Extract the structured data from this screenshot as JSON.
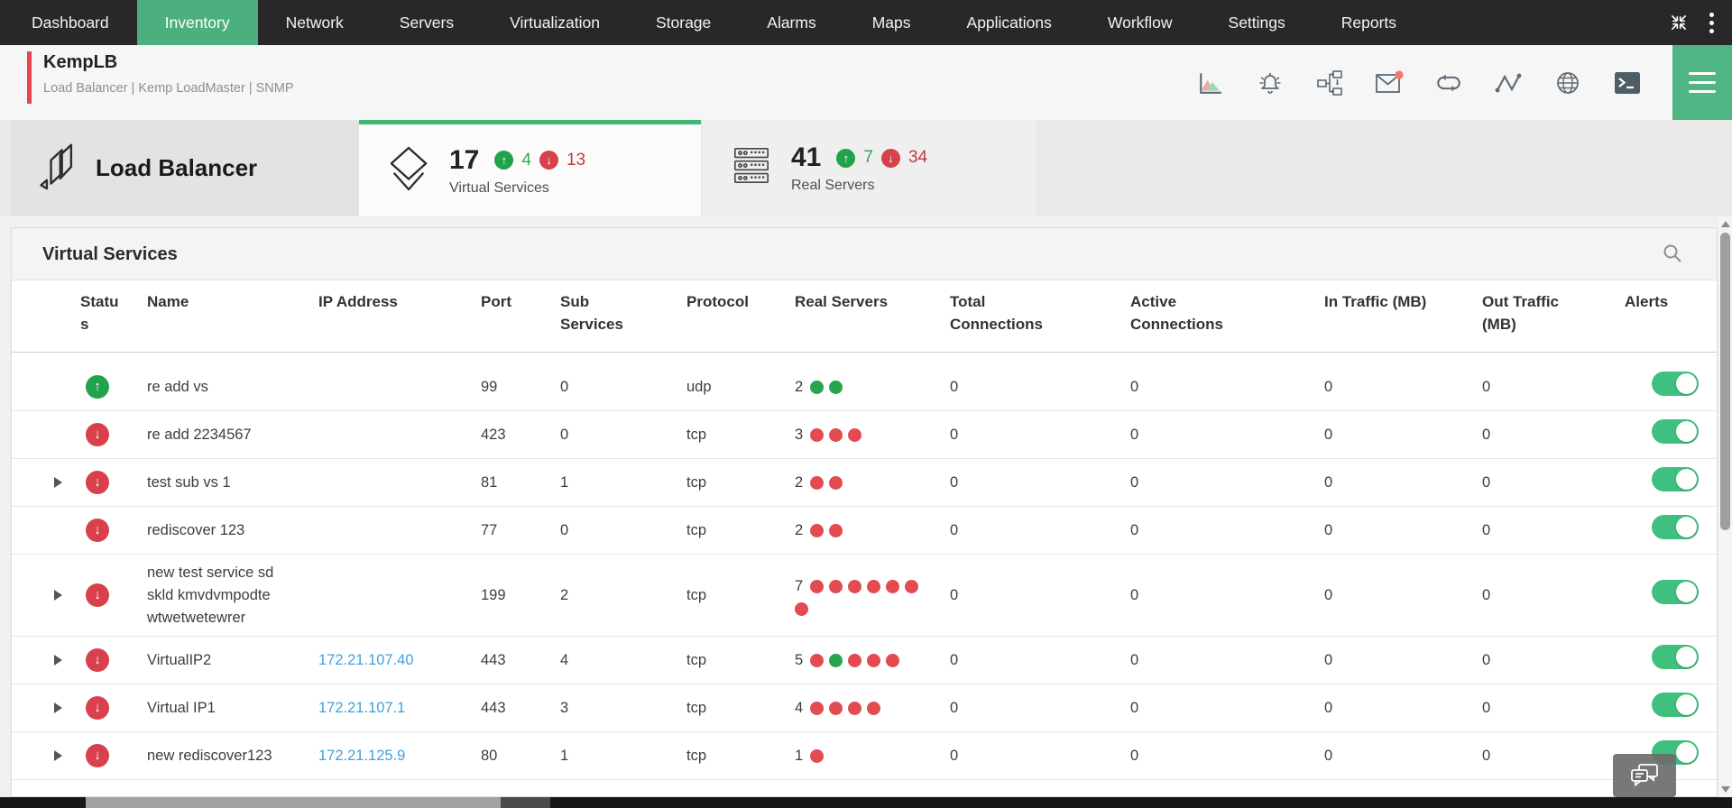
{
  "colors": {
    "nav_bg": "#282828",
    "nav_active_green": "#4caf7e",
    "accent_red": "#e84550",
    "tab_active_border": "#3db976",
    "status_up_green": "#23a24c",
    "status_down_red": "#d8414c",
    "dot_up_green": "#27a54e",
    "dot_down_red": "#e24b50",
    "toggle_on_green": "#3fc07c",
    "ip_link_blue": "#3ea1dd"
  },
  "nav": {
    "items": [
      {
        "label": "Dashboard",
        "active": false
      },
      {
        "label": "Inventory",
        "active": true
      },
      {
        "label": "Network",
        "active": false
      },
      {
        "label": "Servers",
        "active": false
      },
      {
        "label": "Virtualization",
        "active": false
      },
      {
        "label": "Storage",
        "active": false
      },
      {
        "label": "Alarms",
        "active": false
      },
      {
        "label": "Maps",
        "active": false
      },
      {
        "label": "Applications",
        "active": false
      },
      {
        "label": "Workflow",
        "active": false
      },
      {
        "label": "Settings",
        "active": false
      },
      {
        "label": "Reports",
        "active": false
      }
    ],
    "right_icons": [
      "collapse-icon",
      "kebab-menu-icon"
    ]
  },
  "device": {
    "name": "KempLB",
    "subtitle": "Load Balancer | Kemp LoadMaster  | SNMP",
    "toolbar_icons": [
      "performance-chart-icon",
      "alarm-bell-icon",
      "workflow-icon",
      "mail-icon",
      "sync-loop-icon",
      "sparkline-icon",
      "globe-icon",
      "terminal-icon"
    ],
    "mail_notification": true,
    "menu_icon": "hamburger-menu-icon"
  },
  "overview": {
    "device_type": "Load Balancer",
    "tabs": [
      {
        "label": "Virtual Services",
        "count": "17",
        "up_count": "4",
        "down_count": "13",
        "active": true,
        "icon": "layers-diamond-icon"
      },
      {
        "label": "Real Servers",
        "count": "41",
        "up_count": "7",
        "down_count": "34",
        "active": false,
        "icon": "server-rack-icon"
      }
    ]
  },
  "panel": {
    "title": "Virtual Services",
    "search_icon": "search-icon",
    "columns": [
      "Status",
      "Name",
      "IP Address",
      "Port",
      "Sub Services",
      "Protocol",
      "Real Servers",
      "Total Connections",
      "Active Connections",
      "In Traffic (MB)",
      "Out Traffic (MB)",
      "Alerts"
    ],
    "rows": [
      {
        "expandable": false,
        "status": "up",
        "name": "re add vs",
        "ip": "",
        "port": "99",
        "sub_services": "0",
        "protocol": "udp",
        "real_server_count": "2",
        "real_server_dots": [
          "up",
          "up"
        ],
        "total_connections": "0",
        "active_connections": "0",
        "in_traffic_mb": "0",
        "out_traffic_mb": "0",
        "alerts_on": true
      },
      {
        "expandable": false,
        "status": "down",
        "name": "re add 2234567",
        "ip": "",
        "port": "423",
        "sub_services": "0",
        "protocol": "tcp",
        "real_server_count": "3",
        "real_server_dots": [
          "down",
          "down",
          "down"
        ],
        "total_connections": "0",
        "active_connections": "0",
        "in_traffic_mb": "0",
        "out_traffic_mb": "0",
        "alerts_on": true
      },
      {
        "expandable": true,
        "status": "down",
        "name": "test sub vs 1",
        "ip": "",
        "port": "81",
        "sub_services": "1",
        "protocol": "tcp",
        "real_server_count": "2",
        "real_server_dots": [
          "down",
          "down"
        ],
        "total_connections": "0",
        "active_connections": "0",
        "in_traffic_mb": "0",
        "out_traffic_mb": "0",
        "alerts_on": true
      },
      {
        "expandable": false,
        "status": "down",
        "name": "rediscover 123",
        "ip": "",
        "port": "77",
        "sub_services": "0",
        "protocol": "tcp",
        "real_server_count": "2",
        "real_server_dots": [
          "down",
          "down"
        ],
        "total_connections": "0",
        "active_connections": "0",
        "in_traffic_mb": "0",
        "out_traffic_mb": "0",
        "alerts_on": true
      },
      {
        "expandable": true,
        "status": "down",
        "name": "new test service sd skld kmvdvmpodte wtwetwetewrer",
        "ip": "",
        "port": "199",
        "sub_services": "2",
        "protocol": "tcp",
        "real_server_count": "7",
        "real_server_dots": [
          "down",
          "down",
          "down",
          "down",
          "down",
          "down",
          "down"
        ],
        "total_connections": "0",
        "active_connections": "0",
        "in_traffic_mb": "0",
        "out_traffic_mb": "0",
        "alerts_on": true
      },
      {
        "expandable": true,
        "status": "down",
        "name": "VirtualIP2",
        "ip": "172.21.107.40",
        "port": "443",
        "sub_services": "4",
        "protocol": "tcp",
        "real_server_count": "5",
        "real_server_dots": [
          "down",
          "up",
          "down",
          "down",
          "down"
        ],
        "total_connections": "0",
        "active_connections": "0",
        "in_traffic_mb": "0",
        "out_traffic_mb": "0",
        "alerts_on": true
      },
      {
        "expandable": true,
        "status": "down",
        "name": "Virtual IP1",
        "ip": "172.21.107.1",
        "port": "443",
        "sub_services": "3",
        "protocol": "tcp",
        "real_server_count": "4",
        "real_server_dots": [
          "down",
          "down",
          "down",
          "down"
        ],
        "total_connections": "0",
        "active_connections": "0",
        "in_traffic_mb": "0",
        "out_traffic_mb": "0",
        "alerts_on": true
      },
      {
        "expandable": true,
        "status": "down",
        "name": "new rediscover123",
        "ip": "172.21.125.9",
        "port": "80",
        "sub_services": "1",
        "protocol": "tcp",
        "real_server_count": "1",
        "real_server_dots": [
          "down"
        ],
        "total_connections": "0",
        "active_connections": "0",
        "in_traffic_mb": "0",
        "out_traffic_mb": "0",
        "alerts_on": true
      }
    ]
  },
  "floating": {
    "icon": "chat-feedback-icon"
  }
}
